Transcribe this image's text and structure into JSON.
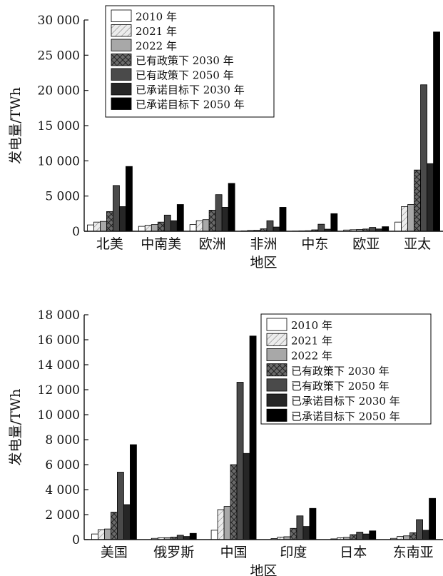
{
  "chart_data": [
    {
      "type": "bar",
      "xlabel": "地区",
      "ylabel": "发电量/TWh",
      "ylim": [
        0,
        30000
      ],
      "yticks": [
        "0",
        "5 000",
        "10 000",
        "15 000",
        "20 000",
        "25 000",
        "30 000"
      ],
      "legend_position": "top-left",
      "categories": [
        "北美",
        "中南美",
        "欧洲",
        "非洲",
        "中东",
        "欧亚",
        "亚太"
      ],
      "series": [
        {
          "name": "2010 年",
          "values": [
            900,
            700,
            950,
            60,
            30,
            180,
            1300
          ]
        },
        {
          "name": "2021 年",
          "values": [
            1300,
            850,
            1500,
            120,
            60,
            220,
            3500
          ]
        },
        {
          "name": "2022 年",
          "values": [
            1400,
            950,
            1650,
            150,
            80,
            250,
            3800
          ]
        },
        {
          "name": "已有政策下 2030 年",
          "values": [
            2800,
            1300,
            3000,
            350,
            200,
            320,
            8700
          ]
        },
        {
          "name": "已有政策下 2050 年",
          "values": [
            6500,
            2300,
            5200,
            1500,
            1000,
            550,
            20800
          ]
        },
        {
          "name": "已承诺目标下 2030 年",
          "values": [
            3500,
            1500,
            3400,
            600,
            300,
            330,
            9600
          ]
        },
        {
          "name": "已承诺目标下 2050 年",
          "values": [
            9200,
            3800,
            6800,
            3400,
            2500,
            650,
            28300
          ]
        }
      ]
    },
    {
      "type": "bar",
      "xlabel": "地区",
      "ylabel": "发电量/TWh",
      "ylim": [
        0,
        18000
      ],
      "yticks": [
        "0",
        "2 000",
        "4 000",
        "6 000",
        "8 000",
        "10 000",
        "12 000",
        "14 000",
        "16 000",
        "18 000"
      ],
      "legend_position": "top-right",
      "categories": [
        "美国",
        "俄罗斯",
        "中国",
        "印度",
        "日本",
        "东南亚"
      ],
      "series": [
        {
          "name": "2010 年",
          "values": [
            450,
            100,
            750,
            80,
            60,
            100
          ]
        },
        {
          "name": "2021 年",
          "values": [
            800,
            150,
            2400,
            200,
            150,
            250
          ]
        },
        {
          "name": "2022 年",
          "values": [
            850,
            150,
            2650,
            230,
            180,
            300
          ]
        },
        {
          "name": "已有政策下 2030 年",
          "values": [
            2200,
            200,
            6000,
            900,
            400,
            550
          ]
        },
        {
          "name": "已有政策下 2050 年",
          "values": [
            5400,
            350,
            12600,
            1900,
            600,
            1600
          ]
        },
        {
          "name": "已承诺目标下 2030 年",
          "values": [
            2800,
            250,
            6900,
            1050,
            450,
            750
          ]
        },
        {
          "name": "已承诺目标下 2050 年",
          "values": [
            7600,
            500,
            16300,
            2500,
            700,
            3300
          ]
        }
      ]
    }
  ],
  "colors": {
    "series_fill": [
      "#ffffff",
      "#ececec",
      "#a8a8a8",
      "#6a6a6a",
      "#4a4a4a",
      "#262626",
      "#000000"
    ],
    "axis": "#111111"
  }
}
